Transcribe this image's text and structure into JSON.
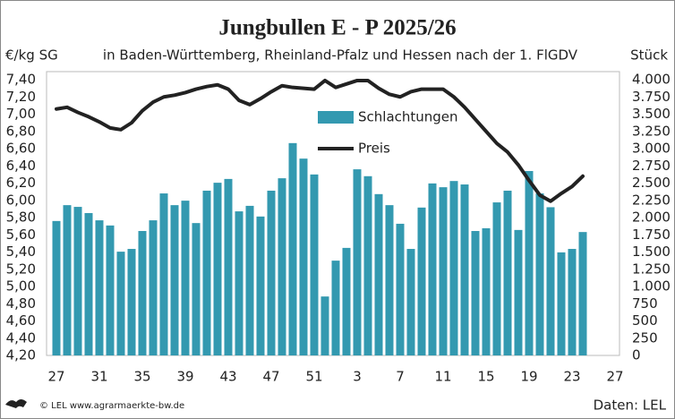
{
  "chart_data": {
    "type": "bar_line",
    "title": "Jungbullen E - P 2025/26",
    "subtitle": "in Baden-Württemberg, Rheinland-Pfalz und Hessen nach der 1. FlGDV",
    "y_label": "€/kg SG",
    "y2_label": "Stück",
    "source": "Daten: LEL",
    "copyright": "© LEL www.agrarmaerkte-bw.de",
    "categories": [
      "27",
      null,
      null,
      null,
      "31",
      null,
      null,
      null,
      "35",
      null,
      null,
      null,
      "39",
      null,
      null,
      null,
      "43",
      null,
      null,
      null,
      "47",
      null,
      null,
      null,
      "51",
      null,
      null,
      null,
      "3",
      null,
      null,
      null,
      "7",
      null,
      null,
      null,
      "11",
      null,
      null,
      null,
      "15",
      null,
      null,
      null,
      "19",
      null,
      null,
      null,
      "23",
      null,
      null,
      null,
      "27"
    ],
    "series": [
      {
        "name": "Schlachtungen",
        "color": "#3399b0",
        "axis": "y2",
        "kind": "bar",
        "values": [
          1950,
          2180,
          2155,
          2065,
          1960,
          1885,
          1505,
          1545,
          1805,
          1960,
          2350,
          2180,
          2245,
          1920,
          2390,
          2505,
          2560,
          2090,
          2170,
          2015,
          2390,
          2570,
          3080,
          2855,
          2625,
          855,
          1375,
          1560,
          2700,
          2600,
          2340,
          2180,
          1910,
          1545,
          2145,
          2495,
          2440,
          2530,
          2480,
          1805,
          1845,
          2220,
          2390,
          1820,
          2675,
          2350,
          2150,
          1495,
          1545,
          1790,
          null,
          null,
          null
        ]
      },
      {
        "name": "Preis",
        "color": "#222222",
        "axis": "y",
        "kind": "line",
        "values": [
          7.06,
          7.08,
          7.02,
          6.97,
          6.91,
          6.84,
          6.82,
          6.9,
          7.04,
          7.14,
          7.2,
          7.22,
          7.25,
          7.29,
          7.32,
          7.34,
          7.29,
          7.16,
          7.11,
          7.18,
          7.26,
          7.33,
          7.31,
          7.3,
          7.29,
          7.39,
          7.31,
          7.35,
          7.39,
          7.39,
          7.3,
          7.23,
          7.2,
          7.26,
          7.29,
          7.29,
          7.29,
          7.2,
          7.08,
          6.94,
          6.8,
          6.66,
          6.56,
          6.41,
          6.23,
          6.06,
          5.99,
          6.08,
          6.16,
          6.28,
          null,
          null,
          null
        ]
      }
    ],
    "ylim": [
      4.2,
      7.4
    ],
    "yticks": [
      {
        "value": 4.2,
        "label": "4,20"
      },
      {
        "value": 4.4,
        "label": "4,40"
      },
      {
        "value": 4.6,
        "label": "4,60"
      },
      {
        "value": 4.8,
        "label": "4,80"
      },
      {
        "value": 5.0,
        "label": "5,00"
      },
      {
        "value": 5.2,
        "label": "5,20"
      },
      {
        "value": 5.4,
        "label": "5,40"
      },
      {
        "value": 5.6,
        "label": "5,60"
      },
      {
        "value": 5.8,
        "label": "5,80"
      },
      {
        "value": 6.0,
        "label": "6,00"
      },
      {
        "value": 6.2,
        "label": "6,20"
      },
      {
        "value": 6.4,
        "label": "6,40"
      },
      {
        "value": 6.6,
        "label": "6,60"
      },
      {
        "value": 6.8,
        "label": "6,80"
      },
      {
        "value": 7.0,
        "label": "7,00"
      },
      {
        "value": 7.2,
        "label": "7,20"
      },
      {
        "value": 7.4,
        "label": "7,40"
      }
    ],
    "y2lim": [
      0,
      4000
    ],
    "y2ticks": [
      0,
      250,
      500,
      750,
      {
        "value": 1000,
        "label": "1.000"
      },
      {
        "value": 1250,
        "label": "1.250"
      },
      {
        "value": 1500,
        "label": "1.500"
      },
      {
        "value": 1750,
        "label": "1.750"
      },
      {
        "value": 2000,
        "label": "2.000"
      },
      {
        "value": 2250,
        "label": "2.250"
      },
      {
        "value": 2500,
        "label": "2.500"
      },
      {
        "value": 2750,
        "label": "2.750"
      },
      {
        "value": 3000,
        "label": "3.000"
      },
      {
        "value": 3250,
        "label": "3.250"
      },
      {
        "value": 3500,
        "label": "3.500"
      },
      {
        "value": 3750,
        "label": "3.750"
      },
      {
        "value": 4000,
        "label": "4.000"
      }
    ],
    "grid": false
  }
}
